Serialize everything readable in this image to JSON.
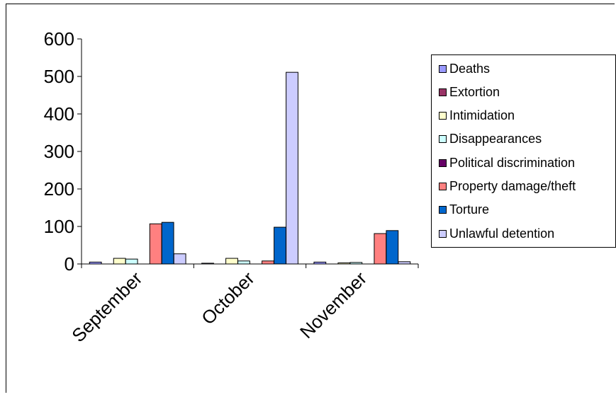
{
  "chart_data": {
    "type": "bar",
    "categories": [
      "September",
      "October",
      "November"
    ],
    "ylim": [
      0,
      600
    ],
    "yticks": [
      0,
      100,
      200,
      300,
      400,
      500,
      600
    ],
    "grid": false,
    "legend_position": "right",
    "series": [
      {
        "name": "Deaths",
        "color": "#9999ff",
        "values": [
          5,
          2,
          5
        ]
      },
      {
        "name": "Extortion",
        "color": "#993366",
        "values": [
          0,
          0,
          0
        ]
      },
      {
        "name": "Intimidation",
        "color": "#ffffcc",
        "values": [
          15,
          15,
          3
        ]
      },
      {
        "name": "Disappearances",
        "color": "#ccffff",
        "values": [
          13,
          8,
          4
        ]
      },
      {
        "name": "Political discrimination",
        "color": "#660066",
        "values": [
          0,
          0,
          0
        ]
      },
      {
        "name": "Property damage/theft",
        "color": "#ff8080",
        "values": [
          107,
          8,
          81
        ]
      },
      {
        "name": "Torture",
        "color": "#0066cc",
        "values": [
          111,
          98,
          89
        ]
      },
      {
        "name": "Unlawful detention",
        "color": "#ccccff",
        "values": [
          27,
          511,
          6
        ]
      }
    ]
  }
}
